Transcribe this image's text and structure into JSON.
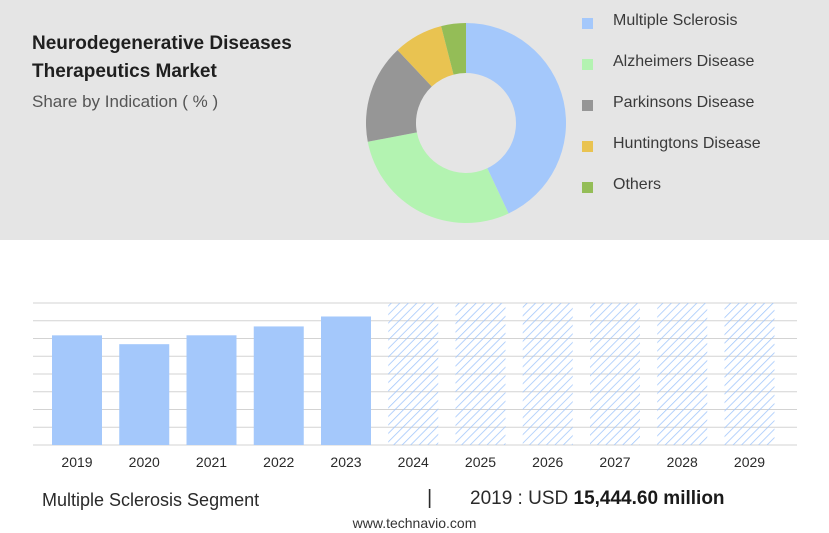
{
  "header": {
    "title_line1": "Neurodegenerative Diseases",
    "title_line2": "Therapeutics Market",
    "subtitle": "Share by Indication ( % )"
  },
  "chart_data": [
    {
      "type": "pie",
      "variant": "donut",
      "slices": [
        {
          "label": "Multiple Sclerosis",
          "value": 43,
          "color": "#a4c8fb"
        },
        {
          "label": "Alzheimers Disease",
          "value": 29,
          "color": "#b3f3b1"
        },
        {
          "label": "Parkinsons Disease",
          "value": 16,
          "color": "#969696"
        },
        {
          "label": "Huntingtons Disease",
          "value": 8,
          "color": "#e9c351"
        },
        {
          "label": "Others",
          "value": 4,
          "color": "#94bd57"
        }
      ],
      "legend_position": "right"
    },
    {
      "type": "bar",
      "categories": [
        "2019",
        "2020",
        "2021",
        "2022",
        "2023",
        "2024",
        "2025",
        "2026",
        "2027",
        "2028",
        "2029"
      ],
      "values": [
        15444.6,
        14200,
        15450,
        16700,
        18100,
        null,
        null,
        null,
        null,
        null,
        null
      ],
      "forecast": [
        false,
        false,
        false,
        false,
        false,
        true,
        true,
        true,
        true,
        true,
        true
      ],
      "ylim": [
        0,
        20000
      ],
      "bar_color": "#a4c8fb",
      "grid": true
    }
  ],
  "footer": {
    "segment": "Multiple Sclerosis Segment",
    "separator": "|",
    "year_prefix": "2019 : USD ",
    "value": "15,444.60 million"
  },
  "watermark": "www.technavio.com"
}
